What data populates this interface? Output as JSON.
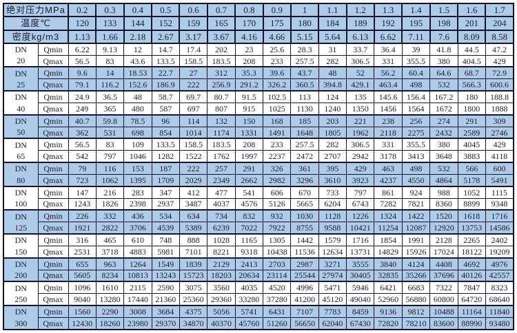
{
  "table": {
    "colors": {
      "shade_blue": "#aecbe9",
      "border": "#15152a",
      "text": "#1c1c2b",
      "row_white": "#ffffff"
    },
    "corner_labels": {
      "dn": "DN",
      "qmin": "Qmin",
      "qmax": "Qmax"
    },
    "header_rows": [
      {
        "key": "pressure",
        "label": "绝对压力MPa",
        "values": [
          "0.2",
          "0.3",
          "0.4",
          "0.5",
          "0.6",
          "0.7",
          "0.8",
          "0.9",
          "1",
          "1.1",
          "1.2",
          "1.3",
          "1.4",
          "1.5",
          "1.6",
          "1.7"
        ]
      },
      {
        "key": "temperature",
        "label": "温度℃",
        "values": [
          "120",
          "133",
          "144",
          "152",
          "159",
          "165",
          "170",
          "175",
          "180",
          "184",
          "189",
          "192",
          "195",
          "198",
          "201",
          "204"
        ]
      },
      {
        "key": "density",
        "label": "密度kg/m3",
        "values": [
          "1.13",
          "1.66",
          "2.18",
          "2.67",
          "3.17",
          "3.67",
          "4.16",
          "4.66",
          "5.15",
          "5.64",
          "6.13",
          "6.62",
          "7.11",
          "7.6",
          "8.09",
          "8.58"
        ]
      }
    ],
    "groups": [
      {
        "dn": "20",
        "shaded": false,
        "qmin": [
          "6.22",
          "9.13",
          "12",
          "14.7",
          "17.4",
          "202",
          "23",
          "25.6",
          "28.3",
          "31",
          "33.7",
          "36.4",
          "39",
          "41.8",
          "44.5",
          "47.2"
        ],
        "qmax": [
          "56.5",
          "83",
          "43.6",
          "133.5",
          "158.5",
          "183.5",
          "208",
          "233",
          "257.5",
          "282",
          "306.5",
          "331",
          "355.5",
          "380",
          "404.5",
          "429"
        ]
      },
      {
        "dn": "25",
        "shaded": true,
        "qmin": [
          "9.6",
          "14",
          "18.53",
          "22.7",
          "27",
          "312",
          "35.3",
          "39.6",
          "43.7",
          "48",
          "52",
          "56.2",
          "60.4",
          "64.6",
          "68.7",
          "72.9"
        ],
        "qmax": [
          "79.1",
          "116.2",
          "152.6",
          "186.9",
          "222",
          "256.9",
          "291.2",
          "326.2",
          "360.5",
          "394.8",
          "429.1",
          "463.4",
          "498",
          "532",
          "566.3",
          "600.6"
        ]
      },
      {
        "dn": "40",
        "shaded": false,
        "qmin": [
          "24.9",
          "36.5",
          "48",
          "58.7",
          "69.7",
          "80.7",
          "91.5",
          "102.5",
          "113",
          "124",
          "135",
          "145.6",
          "156.4",
          "167.2",
          "180",
          "188.8"
        ],
        "qmax": [
          "249",
          "365",
          "480",
          "587",
          "697",
          "807",
          "915",
          "1025",
          "1130",
          "1240",
          "1350",
          "1456",
          "1564",
          "1672",
          "1800",
          "1888"
        ]
      },
      {
        "dn": "50",
        "shaded": true,
        "qmin": [
          "40.7",
          "59.8",
          "78.5",
          "96",
          "114",
          "132",
          "150",
          "168",
          "185",
          "203",
          "221",
          "238",
          "256",
          "274",
          "291",
          "309"
        ],
        "qmax": [
          "362",
          "531",
          "698",
          "854",
          "1014",
          "1174",
          "1331",
          "1491",
          "1648",
          "1805",
          "1962",
          "2118",
          "2275",
          "2432",
          "2589",
          "2746"
        ]
      },
      {
        "dn": "65",
        "shaded": false,
        "qmin": [
          "56.5",
          "83",
          "109",
          "133.5",
          "158.5",
          "183.5",
          "208",
          "233",
          "257.5",
          "282",
          "306.5",
          "331",
          "355.5",
          "380",
          "4045",
          "429"
        ],
        "qmax": [
          "542",
          "797",
          "1046",
          "1282",
          "1522",
          "1762",
          "1997",
          "2237",
          "2472",
          "2707",
          "2942",
          "3178",
          "3413",
          "3648",
          "3883",
          "4118"
        ]
      },
      {
        "dn": "80",
        "shaded": true,
        "qmin": [
          "79",
          "116",
          "153",
          "187",
          "222",
          "257",
          "291",
          "326",
          "361",
          "395",
          "429",
          "463",
          "498",
          "532",
          "566",
          "600"
        ],
        "qmax": [
          "723",
          "1062",
          "1395",
          "1709",
          "2029",
          "2349",
          "2662",
          "2982",
          "3296",
          "3610",
          "3923",
          "4237",
          "4550",
          "4864",
          "5178",
          "5491"
        ]
      },
      {
        "dn": "100",
        "shaded": false,
        "qmin": [
          "147",
          "216",
          "283",
          "347",
          "412",
          "477",
          "541",
          "606",
          "670",
          "733",
          "797",
          "861",
          "924",
          "988",
          "1052",
          "1115"
        ],
        "qmax": [
          "1243",
          "1826",
          "2398",
          "2937",
          "3487",
          "4037",
          "4576",
          "5126",
          "5665",
          "6204",
          "6743",
          "7282",
          "7821",
          "8360",
          "8899",
          "9348"
        ]
      },
      {
        "dn": "125",
        "shaded": true,
        "qmin": [
          "226",
          "332",
          "436",
          "534",
          "634",
          "734",
          "832",
          "932",
          "1030",
          "1128",
          "1226",
          "1324",
          "1422",
          "1520",
          "1618",
          "1716"
        ],
        "qmax": [
          "1921",
          "2822",
          "3706",
          "4539",
          "5389",
          "6239",
          "7022",
          "7922",
          "8755",
          "9588",
          "10421",
          "11254",
          "12087",
          "12920",
          "13753",
          "14586"
        ]
      },
      {
        "dn": "150",
        "shaded": false,
        "qmin": [
          "316",
          "465",
          "610",
          "748",
          "888",
          "1028",
          "1165",
          "1305",
          "1442",
          "1579",
          "1716",
          "1854",
          "1991",
          "2128",
          "2265",
          "2402"
        ],
        "qmax": [
          "2531",
          "3718",
          "4883",
          "5981",
          "7101",
          "8221",
          "9318",
          "10438",
          "11536",
          "12634",
          "13731",
          "14829",
          "15926",
          "17024",
          "18122",
          "19209"
        ]
      },
      {
        "dn": "200",
        "shaded": true,
        "qmin": [
          "655",
          "963",
          "1264",
          "1549",
          "1839",
          "2129",
          "2413",
          "2703",
          "2987",
          "3271",
          "3555",
          "3840",
          "4124",
          "4408",
          "4692",
          "4976"
        ],
        "qmax": [
          "5605",
          "8234",
          "10813",
          "13243",
          "15723",
          "18203",
          "20634",
          "23114",
          "25544",
          "27974",
          "30405",
          "32835",
          "35266",
          "37696",
          "40126",
          "42557"
        ]
      },
      {
        "dn": "250",
        "shaded": false,
        "qmin": [
          "1096",
          "1610",
          "2115",
          "2590",
          "3075",
          "3560",
          "4035",
          "4520",
          "4996",
          "5471",
          "5946",
          "6421",
          "6683",
          "7322",
          "7847",
          "8323"
        ],
        "qmax": [
          "9040",
          "13280",
          "17440",
          "21360",
          "25360",
          "29360",
          "33280",
          "37280",
          "41200",
          "45120",
          "49040",
          "52960",
          "56880",
          "60800",
          "64720",
          "68640"
        ]
      },
      {
        "dn": "300",
        "shaded": true,
        "qmin": [
          "1560",
          "2290",
          "3008",
          "3684",
          "4375",
          "5056",
          "5741",
          "6431",
          "7107",
          "7783",
          "8459",
          "9136",
          "9812",
          "10488",
          "11164",
          "11840"
        ],
        "qmax": [
          "12430",
          "18260",
          "23980",
          "29370",
          "34870",
          "40370",
          "45760",
          "51260",
          "56650",
          "62040",
          "67430",
          "72820",
          "78210",
          "83600",
          "88990",
          "93480"
        ]
      }
    ]
  }
}
